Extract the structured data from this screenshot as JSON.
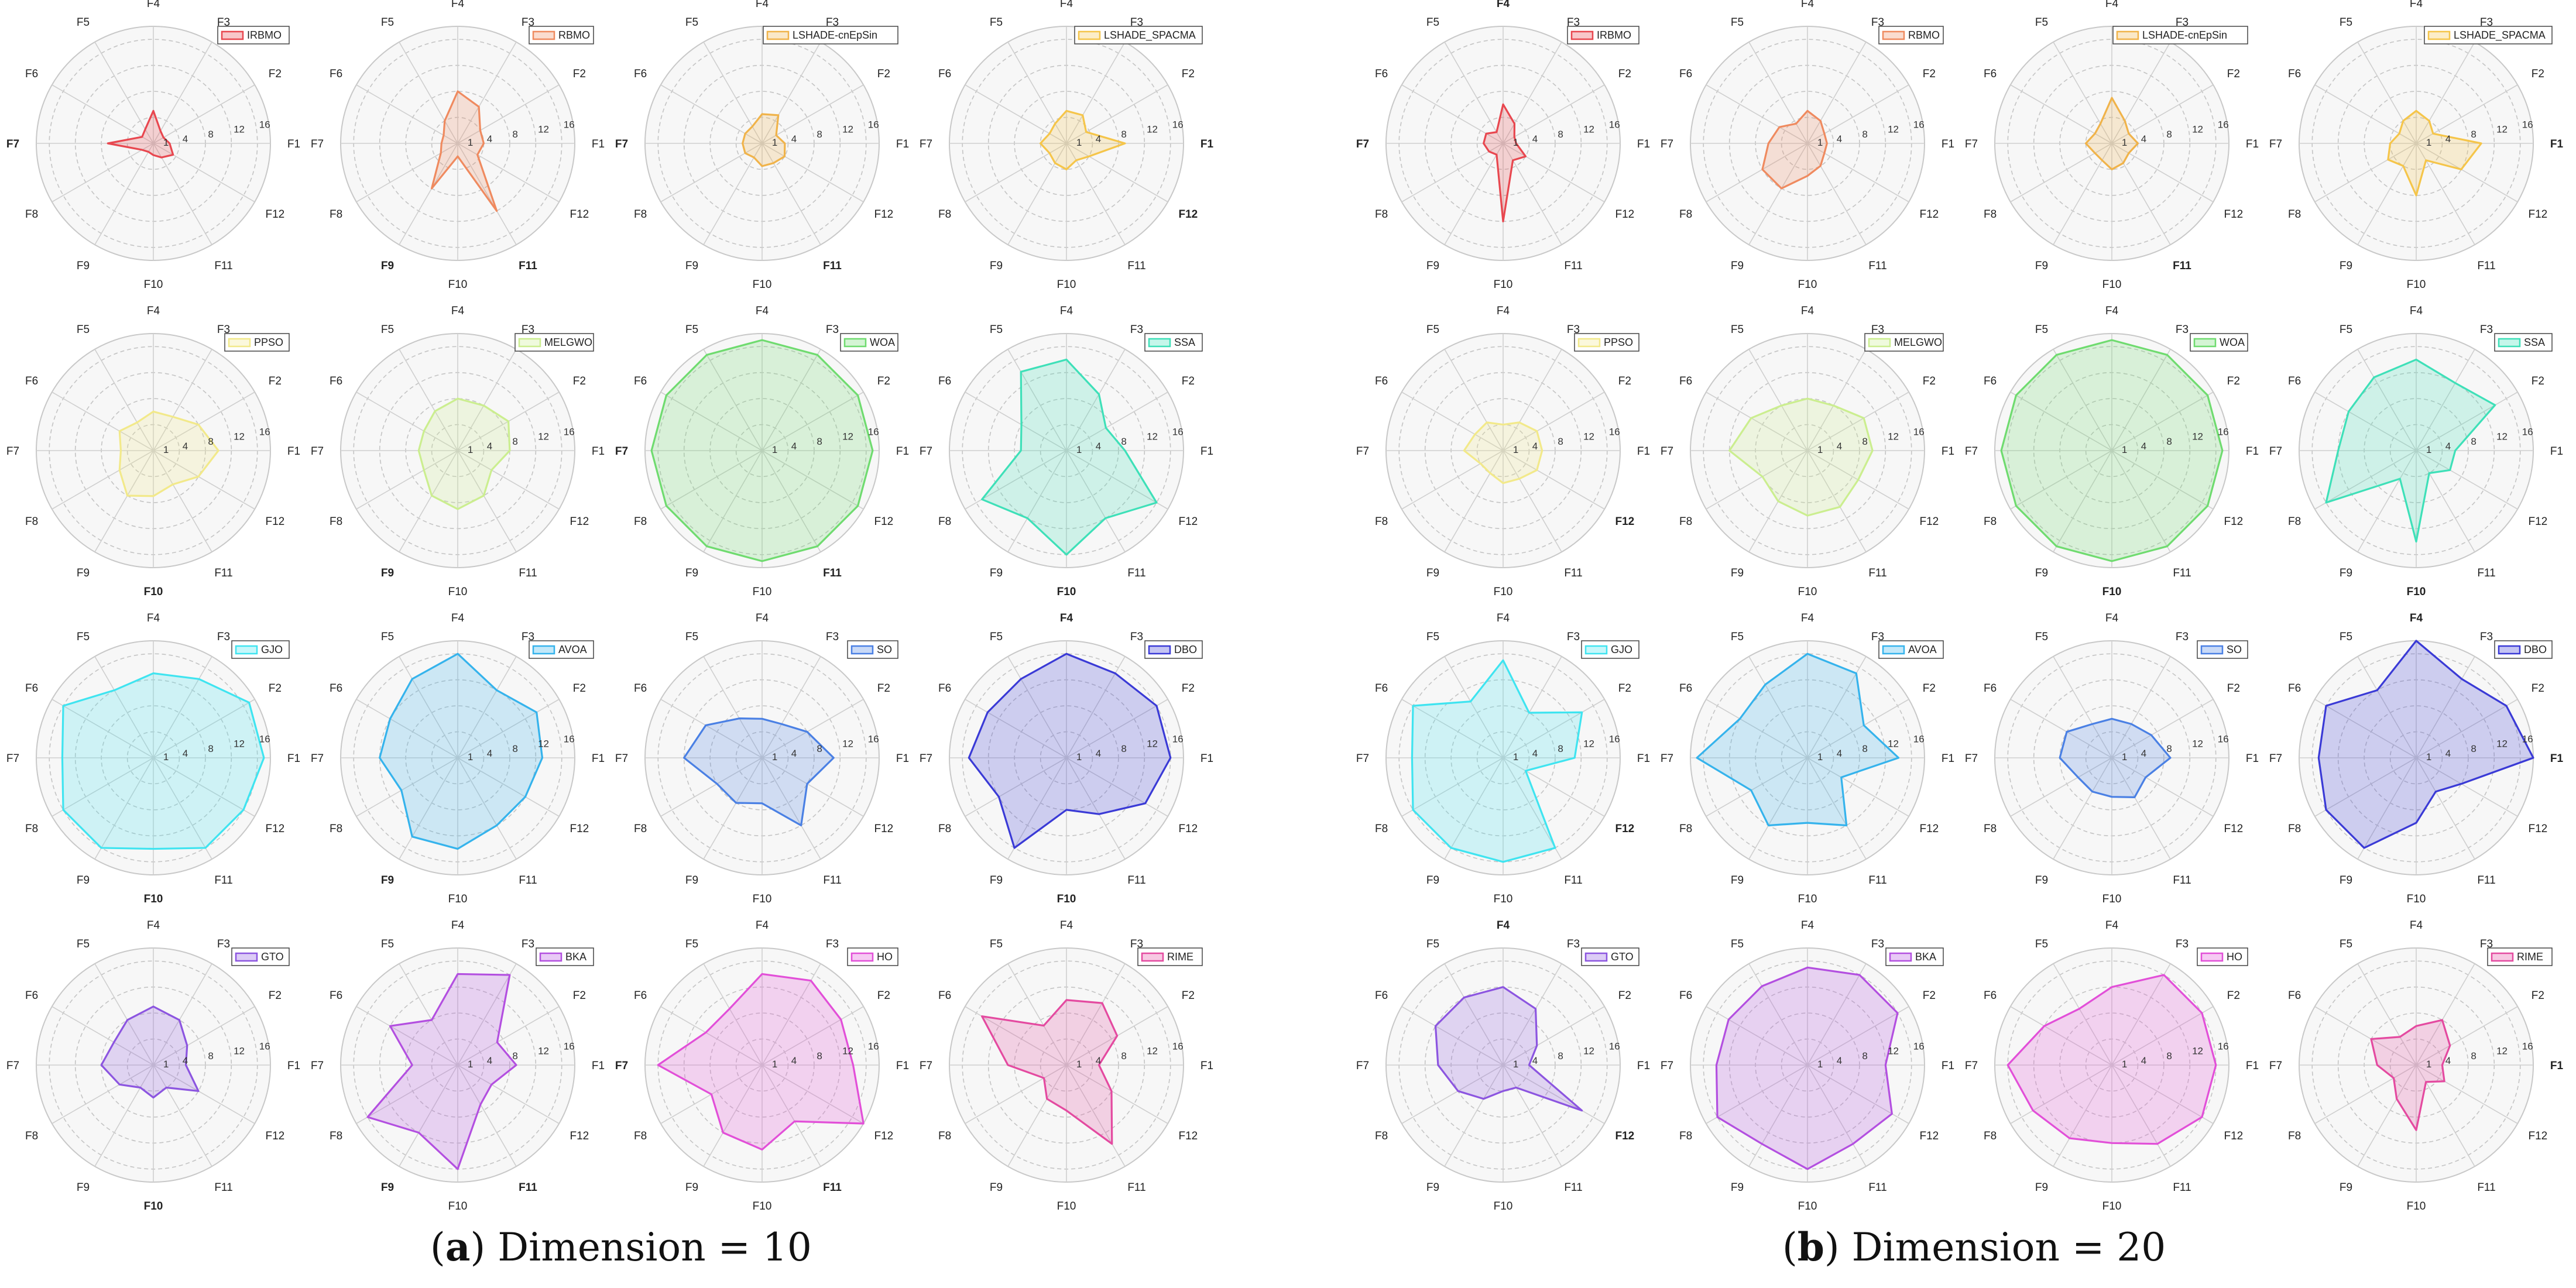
{
  "captions": {
    "a": {
      "letter": "a",
      "text": "Dimension = 10"
    },
    "b": {
      "letter": "b",
      "text": "Dimension = 20"
    }
  },
  "chart_data": {
    "type": "radar",
    "axes": [
      "F1",
      "F2",
      "F3",
      "F4",
      "F5",
      "F6",
      "F7",
      "F8",
      "F9",
      "F10",
      "F11",
      "F12"
    ],
    "radial_ticks": [
      1,
      4,
      8,
      12,
      16
    ],
    "rmax": 18,
    "panels": [
      {
        "id": "a",
        "dimension": 10,
        "algorithms": [
          {
            "name": "IRBMO",
            "color": "#e8474f",
            "values": [
              2.5,
              1.8,
              2.2,
              5,
              2.5,
              2,
              7,
              2,
              1.5,
              1.8,
              2.5,
              3.5
            ],
            "bold": [
              "F7"
            ]
          },
          {
            "name": "RBMO",
            "color": "#ef8a5f",
            "values": [
              4,
              4,
              6.5,
              8,
              4,
              2.5,
              2.5,
              3,
              8,
              2,
              12,
              3.5
            ],
            "bold": [
              "F9",
              "F11"
            ]
          },
          {
            "name": "LSHADE-cnEpSin",
            "color": "#f0b34a",
            "values": [
              3.5,
              2.5,
              5,
              4.5,
              3,
              3,
              3,
              3,
              2.5,
              3.5,
              3.5,
              4
            ],
            "bold": [
              "F7",
              "F11"
            ]
          },
          {
            "name": "LSHADE_SPACMA",
            "color": "#f5c54a",
            "values": [
              9,
              3.5,
              5,
              5,
              3.5,
              3,
              4,
              3,
              3.5,
              4,
              3,
              4
            ],
            "bold": [
              "F1",
              "F12"
            ]
          },
          {
            "name": "PPSO",
            "color": "#f2e98a",
            "values": [
              10,
              8,
              6,
              6,
              5,
              6,
              5,
              6,
              8,
              7,
              6,
              8
            ],
            "bold": [
              "F10"
            ]
          },
          {
            "name": "MELGWO",
            "color": "#cbee8f",
            "values": [
              8,
              9,
              8,
              8,
              7,
              6,
              6,
              6,
              8,
              9,
              8,
              6
            ],
            "bold": [
              "F9"
            ]
          },
          {
            "name": "WOA",
            "color": "#6fdb6f",
            "values": [
              17,
              17,
              17,
              17,
              17,
              17,
              17,
              17,
              17,
              17,
              17,
              17
            ],
            "bold": [
              "F11",
              "F7"
            ]
          },
          {
            "name": "SSA",
            "color": "#3ee0b8",
            "values": [
              9,
              7,
              10,
              14,
              14,
              8,
              7,
              15,
              12,
              16,
              12,
              16
            ],
            "bold": [
              "F10"
            ]
          },
          {
            "name": "GJO",
            "color": "#3fe4f0",
            "values": [
              17,
              17,
              14,
              13,
              12,
              16,
              14,
              16,
              16,
              14,
              16,
              16
            ],
            "bold": [
              "F10"
            ]
          },
          {
            "name": "AVOA",
            "color": "#35b3ec",
            "values": [
              13,
              14,
              12,
              16,
              14,
              12,
              12,
              10,
              14,
              14,
              12,
              12
            ],
            "bold": [
              "F9"
            ]
          },
          {
            "name": "SO",
            "color": "#4a80e4",
            "values": [
              11,
              8,
              6,
              6,
              7,
              10,
              12,
              8,
              8,
              7,
              12,
              8
            ],
            "bold": []
          },
          {
            "name": "DBO",
            "color": "#3a3ad6",
            "values": [
              16,
              16,
              15,
              16,
              14,
              14,
              15,
              12,
              16,
              8,
              10,
              14
            ],
            "bold": [
              "F4",
              "F10"
            ]
          },
          {
            "name": "GTO",
            "color": "#8c55e0",
            "values": [
              5,
              6,
              8,
              9,
              8,
              7,
              8,
              6,
              4,
              5,
              4,
              8
            ],
            "bold": [
              "F10"
            ]
          },
          {
            "name": "BKA",
            "color": "#b34fe0",
            "values": [
              9,
              7,
              16,
              14,
              8,
              12,
              7,
              16,
              12,
              16,
              7,
              6
            ],
            "bold": [
              "F9",
              "F11"
            ]
          },
          {
            "name": "HO",
            "color": "#e24fd8",
            "values": [
              14,
              14,
              15,
              14,
              10,
              10,
              16,
              9,
              12,
              13,
              10,
              18
            ],
            "bold": [
              "F7",
              "F11"
            ]
          },
          {
            "name": "RIME",
            "color": "#e44aa0",
            "values": [
              5,
              9,
              11,
              10,
              7,
              15,
              9,
              4,
              6,
              7,
              14,
              8
            ],
            "bold": []
          }
        ]
      },
      {
        "id": "b",
        "dimension": 20,
        "algorithms": [
          {
            "name": "IRBMO",
            "color": "#e8474f",
            "values": [
              2,
              2,
              3.5,
              6,
              2,
              3,
              3,
              2.5,
              2,
              12,
              3,
              4
            ],
            "bold": [
              "F4",
              "F7"
            ]
          },
          {
            "name": "RBMO",
            "color": "#ef8a5f",
            "values": [
              3,
              3,
              4,
              5,
              3.5,
              5,
              6,
              8,
              8,
              5,
              4,
              3
            ],
            "bold": []
          },
          {
            "name": "LSHADE-cnEpSin",
            "color": "#f0b34a",
            "values": [
              4,
              3,
              4,
              7,
              3.5,
              3,
              4,
              3,
              3,
              4,
              3.5,
              3
            ],
            "bold": [
              "F11"
            ]
          },
          {
            "name": "LSHADE_SPACMA",
            "color": "#f5c54a",
            "values": [
              10,
              3,
              4,
              5,
              4,
              3,
              4,
              5,
              4,
              8,
              3,
              8
            ],
            "bold": [
              "F1"
            ]
          },
          {
            "name": "PPSO",
            "color": "#f2e98a",
            "values": [
              6,
              6,
              5,
              4,
              5,
              5,
              6,
              4,
              4,
              5,
              5,
              6
            ],
            "bold": [
              "F12"
            ]
          },
          {
            "name": "MELGWO",
            "color": "#cbee8f",
            "values": [
              10,
              10,
              8,
              8,
              8,
              10,
              12,
              8,
              9,
              10,
              10,
              9
            ],
            "bold": []
          },
          {
            "name": "WOA",
            "color": "#6fdb6f",
            "values": [
              17,
              17,
              17,
              17,
              17,
              17,
              17,
              17,
              17,
              17,
              17,
              17
            ],
            "bold": [
              "F10"
            ]
          },
          {
            "name": "SSA",
            "color": "#3ee0b8",
            "values": [
              6,
              14,
              12,
              14,
              13,
              12,
              12,
              16,
              5,
              14,
              4,
              6
            ],
            "bold": [
              "F10"
            ]
          },
          {
            "name": "GJO",
            "color": "#3fe4f0",
            "values": [
              11,
              14,
              8,
              15,
              10,
              16,
              14,
              16,
              16,
              16,
              16,
              4
            ],
            "bold": [
              "F12"
            ]
          },
          {
            "name": "AVOA",
            "color": "#35b3ec",
            "values": [
              14,
              10,
              15,
              16,
              13,
              12,
              17,
              10,
              12,
              10,
              12,
              6
            ],
            "bold": []
          },
          {
            "name": "SO",
            "color": "#4a80e4",
            "values": [
              9,
              7,
              6,
              6,
              6,
              8,
              8,
              6,
              6,
              6,
              7,
              6
            ],
            "bold": []
          },
          {
            "name": "DBO",
            "color": "#3a3ad6",
            "values": [
              18,
              16,
              14,
              18,
              12,
              16,
              15,
              16,
              16,
              10,
              6,
              8
            ],
            "bold": [
              "F1",
              "F4"
            ]
          },
          {
            "name": "GTO",
            "color": "#8c55e0",
            "values": [
              4,
              6,
              10,
              12,
              12,
              12,
              10,
              8,
              6,
              4,
              4,
              14
            ],
            "bold": [
              "F4",
              "F12"
            ]
          },
          {
            "name": "BKA",
            "color": "#b34fe0",
            "values": [
              12,
              16,
              16,
              15,
              14,
              14,
              14,
              16,
              14,
              16,
              14,
              15
            ],
            "bold": []
          },
          {
            "name": "HO",
            "color": "#e24fd8",
            "values": [
              16,
              16,
              16,
              12,
              10,
              12,
              16,
              14,
              13,
              12,
              14,
              16
            ],
            "bold": []
          },
          {
            "name": "RIME",
            "color": "#e44aa0",
            "values": [
              4,
              6,
              8,
              6,
              5,
              8,
              6,
              4,
              6,
              10,
              3,
              5
            ],
            "bold": [
              "F1"
            ]
          }
        ]
      }
    ]
  }
}
